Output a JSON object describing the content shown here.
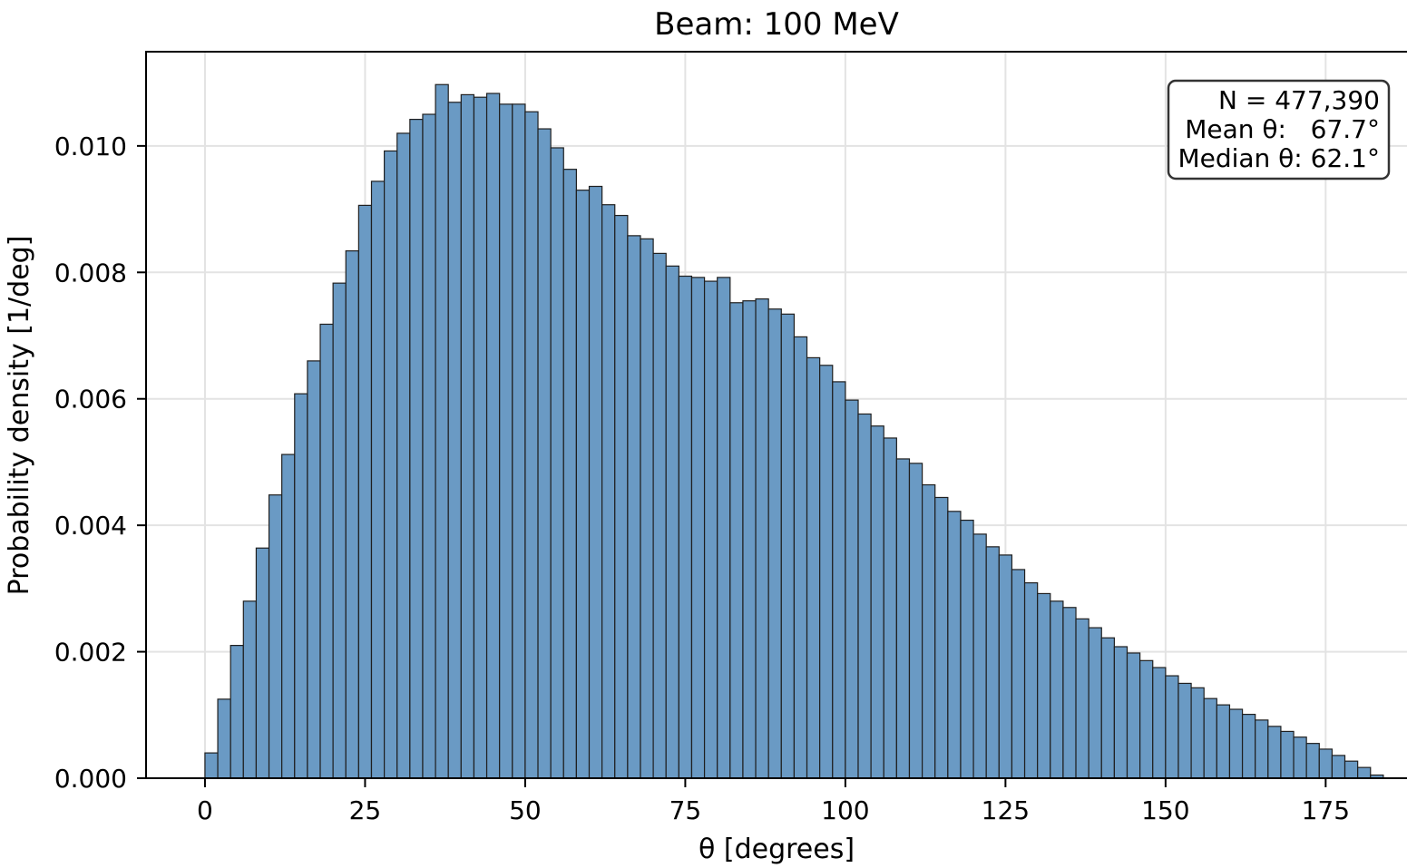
{
  "chart_data": {
    "type": "bar",
    "title": "Beam: 100 MeV",
    "xlabel": "θ [degrees]",
    "ylabel": "Probability density [1/deg]",
    "xlim": [
      -9.2,
      187.7
    ],
    "ylim": [
      0,
      0.01149
    ],
    "bin_start": 0,
    "bin_width": 2,
    "xticks": [
      0,
      25,
      50,
      75,
      100,
      125,
      150,
      175
    ],
    "xtick_labels": [
      "0",
      "25",
      "50",
      "75",
      "100",
      "125",
      "150",
      "175"
    ],
    "yticks": [
      0.0,
      0.002,
      0.004,
      0.006,
      0.008,
      0.01
    ],
    "ytick_labels": [
      "0.000",
      "0.002",
      "0.004",
      "0.006",
      "0.008",
      "0.010"
    ],
    "grid": true,
    "bar_color": "#6a9ac4",
    "edge_color": "#1f1f1f",
    "values": [
      0.0004,
      0.00125,
      0.0021,
      0.0028,
      0.00364,
      0.00448,
      0.00512,
      0.00608,
      0.0066,
      0.00718,
      0.00783,
      0.00834,
      0.00906,
      0.00944,
      0.00992,
      0.0102,
      0.01042,
      0.0105,
      0.01097,
      0.01069,
      0.01081,
      0.01077,
      0.01083,
      0.01066,
      0.01066,
      0.01054,
      0.01027,
      0.00997,
      0.00963,
      0.0093,
      0.00936,
      0.00907,
      0.0089,
      0.00858,
      0.00853,
      0.0083,
      0.0081,
      0.00794,
      0.00792,
      0.00786,
      0.00792,
      0.00752,
      0.00755,
      0.00758,
      0.00742,
      0.00734,
      0.00698,
      0.00665,
      0.00653,
      0.00627,
      0.00598,
      0.00576,
      0.00557,
      0.00538,
      0.00505,
      0.00498,
      0.00464,
      0.00444,
      0.00422,
      0.00408,
      0.00386,
      0.00366,
      0.00353,
      0.0033,
      0.00309,
      0.00292,
      0.0028,
      0.0027,
      0.00252,
      0.00238,
      0.00222,
      0.00208,
      0.00198,
      0.00186,
      0.00175,
      0.00162,
      0.0015,
      0.00143,
      0.00126,
      0.00116,
      0.00109,
      0.00101,
      0.00092,
      0.00082,
      0.00074,
      0.00065,
      0.00055,
      0.00046,
      0.00036,
      0.00027,
      0.00017,
      5e-05
    ],
    "annotation": {
      "lines": [
        "N = 477,390",
        "Mean θ:   67.7°",
        "Median θ: 62.1°"
      ],
      "placement": "top-right"
    }
  }
}
